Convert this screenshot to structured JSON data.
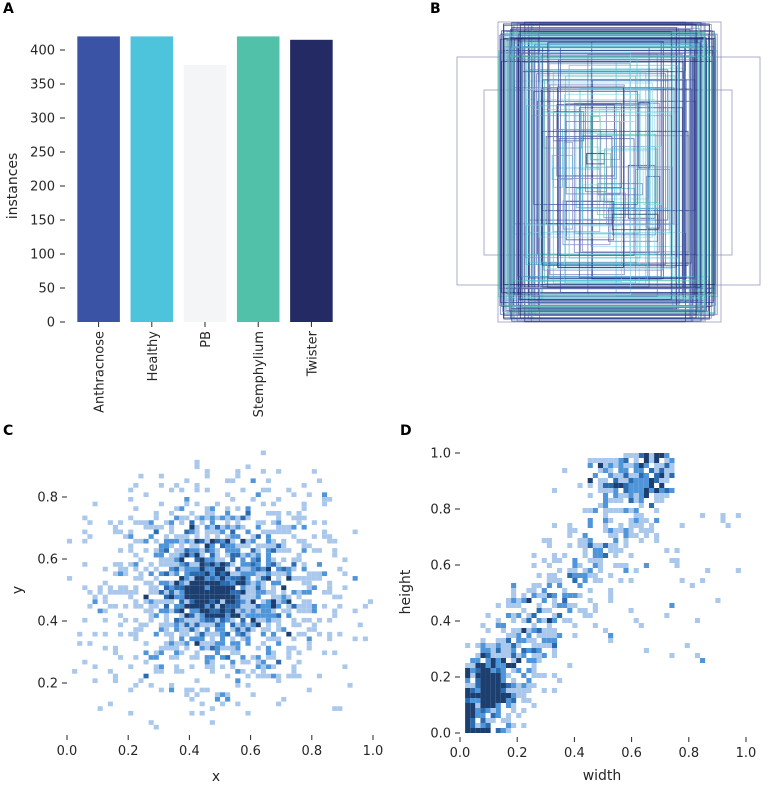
{
  "colors": {
    "axis": "#262626",
    "hist_light": "#a9c8ec",
    "hist_mid": "#4f95da",
    "hist_dark": "#1b3a6b",
    "box_palette": [
      "#21276b",
      "#3c4fa0",
      "#4cc3d9",
      "#5f6db5",
      "#8ad8e8",
      "#2b3a8f",
      "#7d86c4",
      "#52c1a9"
    ]
  },
  "chart_data": [
    {
      "panel": "A",
      "type": "bar",
      "title": "",
      "xlabel": "",
      "ylabel": "instances",
      "categories": [
        "Anthracnose",
        "Healthy",
        "PB",
        "Stemphylium",
        "Twister"
      ],
      "values": [
        420,
        420,
        378,
        420,
        415
      ],
      "colors": [
        "#3a53a4",
        "#4ec4dc",
        "#f4f5f7",
        "#52c1a9",
        "#242a63"
      ],
      "ylim": [
        0,
        430
      ],
      "yticks": [
        0,
        50,
        100,
        150,
        200,
        250,
        300,
        350,
        400
      ],
      "ytick_labels": [
        "0",
        "50",
        "100",
        "150",
        "200",
        "250",
        "300",
        "350",
        "400"
      ]
    },
    {
      "panel": "B",
      "type": "box-overlay",
      "title": "",
      "description_count": 2053,
      "axes": "off"
    },
    {
      "panel": "C",
      "type": "heatmap",
      "title": "",
      "xlabel": "x",
      "ylabel": "y",
      "xlim": [
        0,
        1
      ],
      "ylim": [
        0.05,
        0.95
      ],
      "xticks": [
        0.0,
        0.2,
        0.4,
        0.6,
        0.8,
        1.0
      ],
      "xtick_labels": [
        "0.0",
        "0.2",
        "0.4",
        "0.6",
        "0.8",
        "1.0"
      ],
      "yticks": [
        0.2,
        0.4,
        0.6,
        0.8
      ],
      "ytick_labels": [
        "0.2",
        "0.4",
        "0.6",
        "0.8"
      ],
      "center": [
        0.5,
        0.5
      ],
      "spread": [
        0.17,
        0.15
      ]
    },
    {
      "panel": "D",
      "type": "heatmap",
      "title": "",
      "xlabel": "width",
      "ylabel": "height",
      "xlim": [
        0,
        1
      ],
      "ylim": [
        0,
        1
      ],
      "xticks": [
        0.0,
        0.2,
        0.4,
        0.6,
        0.8,
        1.0
      ],
      "xtick_labels": [
        "0.0",
        "0.2",
        "0.4",
        "0.6",
        "0.8",
        "1.0"
      ],
      "yticks": [
        0.0,
        0.2,
        0.4,
        0.6,
        0.8,
        1.0
      ],
      "ytick_labels": [
        "0.0",
        "0.2",
        "0.4",
        "0.6",
        "0.8",
        "1.0"
      ],
      "dense_region": [
        0.07,
        0.1
      ]
    }
  ],
  "panels": {
    "a": "A",
    "b": "B",
    "c": "C",
    "d": "D"
  }
}
